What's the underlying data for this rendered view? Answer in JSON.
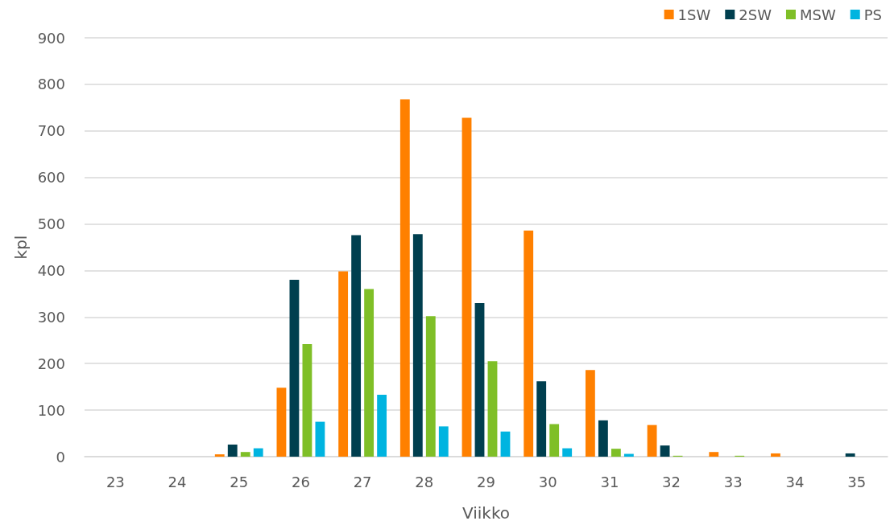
{
  "chart_data": {
    "type": "bar",
    "xlabel": "Viikko",
    "ylabel": "kpl",
    "categories": [
      "23",
      "24",
      "25",
      "26",
      "27",
      "28",
      "29",
      "30",
      "31",
      "32",
      "33",
      "34",
      "35"
    ],
    "series": [
      {
        "name": "1SW",
        "color": "#ff8000",
        "values": [
          0,
          0,
          5,
          148,
          398,
          768,
          728,
          486,
          186,
          68,
          10,
          7,
          0
        ]
      },
      {
        "name": "2SW",
        "color": "#003f4f",
        "values": [
          0,
          0,
          26,
          380,
          476,
          478,
          330,
          162,
          78,
          24,
          0,
          0,
          7
        ]
      },
      {
        "name": "MSW",
        "color": "#7fbf27",
        "values": [
          0,
          0,
          10,
          242,
          360,
          302,
          205,
          70,
          17,
          2,
          2,
          0,
          0
        ]
      },
      {
        "name": "PS",
        "color": "#00b4e0",
        "values": [
          0,
          0,
          18,
          75,
          133,
          65,
          54,
          18,
          6,
          0,
          0,
          0,
          0
        ]
      }
    ],
    "ylim": [
      0,
      900
    ],
    "yticks": [
      0,
      100,
      200,
      300,
      400,
      500,
      600,
      700,
      800,
      900
    ],
    "grid": "y",
    "legend": "top right"
  }
}
